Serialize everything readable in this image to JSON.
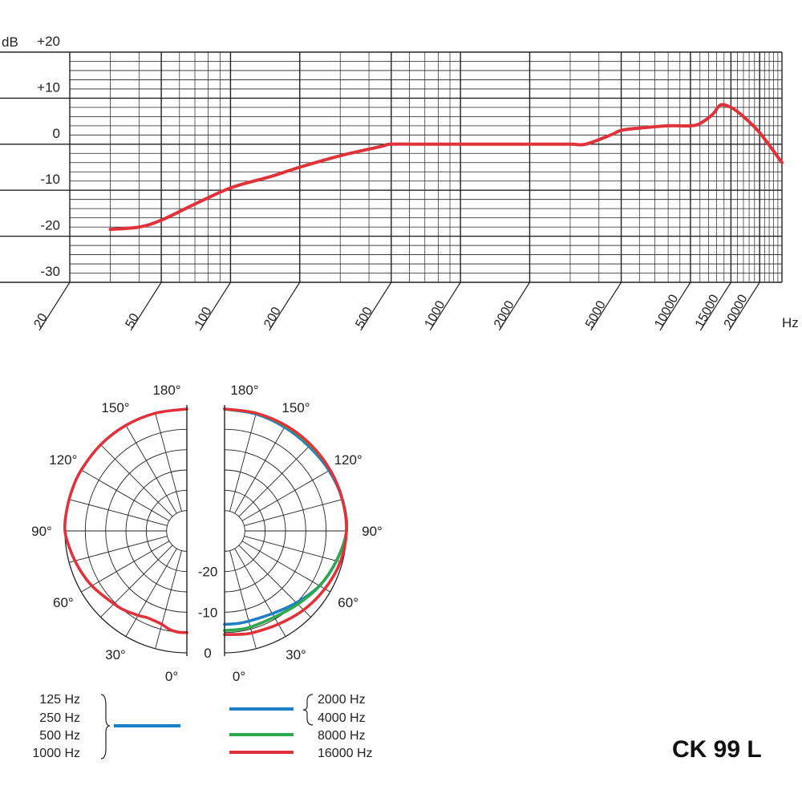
{
  "model_name": "CK 99 L",
  "colors": {
    "grid": "#222222",
    "red": "#e0323a",
    "blue": "#1f7fc4",
    "green": "#2ea84f"
  },
  "chart_data": [
    {
      "type": "line",
      "ylabel": "dB",
      "xlabel": "Hz",
      "xscale": "log",
      "xlim": [
        20,
        25000
      ],
      "ylim": [
        -30,
        20
      ],
      "yticks": [
        "+20",
        "+10",
        "0",
        "-10",
        "-20",
        "-30"
      ],
      "xticks": [
        "20",
        "50",
        "100",
        "200",
        "500",
        "1000",
        "2000",
        "5000",
        "10000",
        "15000",
        "20000"
      ],
      "grid": true,
      "series": [
        {
          "color": "red",
          "x": [
            30,
            40,
            50,
            70,
            100,
            150,
            200,
            300,
            450,
            500,
            700,
            1000,
            2000,
            3000,
            3500,
            4500,
            5000,
            6000,
            8000,
            10000,
            11000,
            12500,
            13500,
            15000,
            17000,
            20000,
            25000
          ],
          "y": [
            -18.5,
            -18,
            -16.5,
            -13,
            -9.5,
            -7,
            -5,
            -2.5,
            -0.5,
            0,
            0,
            0,
            0,
            0,
            0,
            2,
            3,
            3.5,
            4,
            4,
            4.5,
            6.5,
            8.5,
            8,
            6,
            2.5,
            -4
          ]
        }
      ]
    },
    {
      "type": "polar",
      "angle_labels": [
        "180°",
        "150°",
        "120°",
        "90°",
        "60°",
        "30°",
        "0°"
      ],
      "radial_labels": [
        "-20",
        "-10",
        "0"
      ],
      "rlim": [
        -30,
        0
      ],
      "left_half": {
        "series": [
          {
            "color": "red",
            "angles": [
              0,
              5,
              10,
              15,
              20,
              25,
              30,
              40,
              50,
              60,
              70,
              80,
              90,
              100,
              110,
              120,
              135,
              150,
              165,
              180
            ],
            "db": [
              -5,
              -5,
              -5.4,
              -6.2,
              -6.5,
              -6.5,
              -6,
              -5,
              -4.2,
              -3,
              -2,
              -1,
              0,
              0,
              0,
              0,
              0,
              0,
              0,
              0
            ]
          }
        ]
      },
      "right_half": {
        "series": [
          {
            "color": "blue",
            "angles": [
              0,
              8,
              15,
              30,
              45,
              60,
              75,
              90,
              105,
              120,
              135,
              150,
              165,
              180
            ],
            "db": [
              -7,
              -7,
              -7,
              -6.5,
              -5,
              -3,
              -1.5,
              0,
              0,
              -0.3,
              -0.6,
              -0.5,
              -0.2,
              0
            ]
          },
          {
            "color": "green",
            "angles": [
              0,
              8,
              15,
              30,
              45,
              60,
              75,
              90,
              105,
              120,
              135,
              150,
              165,
              180
            ],
            "db": [
              -5.5,
              -5.5,
              -5.5,
              -5.5,
              -4.5,
              -3,
              -1.5,
              0,
              0,
              0,
              -0.2,
              -0.2,
              0,
              0
            ]
          },
          {
            "color": "red",
            "angles": [
              0,
              8,
              15,
              30,
              45,
              60,
              75,
              90,
              105,
              120,
              135,
              150,
              165,
              180
            ],
            "db": [
              -4.5,
              -4.3,
              -4,
              -3.5,
              -2.5,
              -1.5,
              -0.5,
              0,
              0,
              0,
              0,
              0,
              0,
              0
            ]
          }
        ]
      },
      "legend_left": {
        "labels": [
          "125 Hz",
          "250 Hz",
          "500 Hz",
          "1000 Hz"
        ],
        "color": "blue"
      },
      "legend_right": [
        {
          "labels": [
            "2000 Hz",
            "4000 Hz"
          ],
          "color": "blue"
        },
        {
          "labels": [
            "8000 Hz"
          ],
          "color": "green"
        },
        {
          "labels": [
            "16000 Hz"
          ],
          "color": "red"
        }
      ]
    }
  ]
}
